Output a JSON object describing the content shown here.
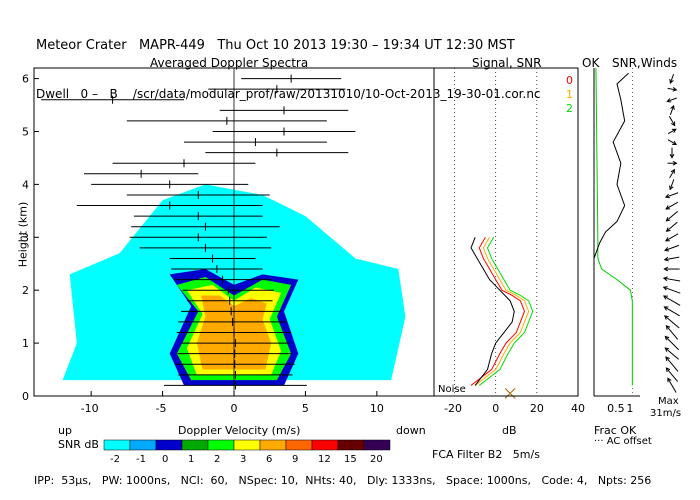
{
  "header": {
    "line1": "Meteor Crater   MAPR-449   Thu Oct 10 2013 19:30 – 19:34 UT 12:30 MST",
    "line2": "Dwell   0 –   B    /scr/data/modular_prof/raw/20131010/10-Oct-2013_19-30-01.cor.nc"
  },
  "footer": {
    "params": "IPP:  53μs,   PW: 1000ns,   NCI:  60,   NSpec: 10,  NHts: 40,   Dly: 1333ns,   Space: 1000ns,   Code: 4,   Npts: 256",
    "fca": "FCA Filter B2   5m/s"
  },
  "colorbar": {
    "title": "SNR dB",
    "labels": [
      "-2",
      "-1",
      "0",
      "1",
      "2",
      "3",
      "6",
      "9",
      "12",
      "15",
      "20"
    ],
    "colors": [
      "#00ffff",
      "#00aaff",
      "#0000cc",
      "#00aa00",
      "#00ff00",
      "#ffff00",
      "#ffaa00",
      "#ff6600",
      "#ff0000",
      "#660000",
      "#330055"
    ]
  },
  "panels": {
    "doppler": {
      "title": "Averaged Doppler Spectra",
      "xlabel": "Doppler Velocity (m/s)",
      "left_word": "up",
      "right_word": "down"
    },
    "snr": {
      "title": "Signal, SNR",
      "xlabel": "dB",
      "noise_label": "Noise",
      "legend": [
        "0",
        "1",
        "2"
      ],
      "legend_colors": [
        "#ff0000",
        "#ffaa00",
        "#00dd00"
      ]
    },
    "ok": {
      "title": "OK",
      "xlabel": "Frac OK",
      "note": "··· AC offset"
    },
    "winds": {
      "title": "SNR,Winds",
      "max_label": "Max",
      "max_value": "31m/s"
    }
  },
  "chart_data": [
    {
      "type": "heatmap",
      "title": "Averaged Doppler Spectra",
      "xlabel": "Doppler Velocity (m/s)",
      "ylabel": "Height (km)",
      "xlim": [
        -14,
        14
      ],
      "ylim": [
        0,
        6.2
      ],
      "xticks": [
        -10,
        -5,
        0,
        5,
        10
      ],
      "yticks": [
        0,
        1,
        2,
        3,
        4,
        5,
        6
      ],
      "contours": [
        {
          "level": "-2",
          "color": "#00ffff",
          "points": [
            [
              -12,
              0.3
            ],
            [
              -11,
              1.0
            ],
            [
              -11.5,
              2.3
            ],
            [
              -8,
              2.7
            ],
            [
              -5,
              3.7
            ],
            [
              -2,
              4.0
            ],
            [
              2,
              3.8
            ],
            [
              5,
              3.4
            ],
            [
              8.5,
              2.6
            ],
            [
              11.5,
              2.4
            ],
            [
              12,
              1.5
            ],
            [
              11,
              0.3
            ]
          ]
        },
        {
          "level": "0",
          "color": "#0000cc",
          "points": [
            [
              -3.5,
              0.2
            ],
            [
              -4.5,
              0.8
            ],
            [
              -3,
              1.7
            ],
            [
              -4.5,
              2.3
            ],
            [
              -2,
              2.4
            ],
            [
              0,
              2.1
            ],
            [
              2,
              2.3
            ],
            [
              4.5,
              2.2
            ],
            [
              3.5,
              1.6
            ],
            [
              4.5,
              0.8
            ],
            [
              3.5,
              0.2
            ]
          ]
        },
        {
          "level": "2",
          "color": "#00ff00",
          "points": [
            [
              -3,
              0.3
            ],
            [
              -4,
              0.8
            ],
            [
              -2.5,
              1.6
            ],
            [
              -4,
              2.1
            ],
            [
              -2,
              2.25
            ],
            [
              0,
              1.9
            ],
            [
              2,
              2.2
            ],
            [
              4,
              2.1
            ],
            [
              3,
              1.5
            ],
            [
              4,
              0.8
            ],
            [
              3,
              0.3
            ]
          ]
        },
        {
          "level": "3",
          "color": "#ffff00",
          "points": [
            [
              -2.6,
              0.4
            ],
            [
              -3.3,
              0.9
            ],
            [
              -2.2,
              1.55
            ],
            [
              -3.3,
              2.0
            ],
            [
              -1.5,
              2.1
            ],
            [
              0,
              1.8
            ],
            [
              1.5,
              2.05
            ],
            [
              3.3,
              1.95
            ],
            [
              2.5,
              1.45
            ],
            [
              3.3,
              0.85
            ],
            [
              2.6,
              0.4
            ]
          ]
        },
        {
          "level": "6",
          "color": "#ffaa00",
          "points": [
            [
              -2.2,
              0.5
            ],
            [
              -2.6,
              1.0
            ],
            [
              -2,
              1.5
            ],
            [
              -2.3,
              1.9
            ],
            [
              -1,
              1.9
            ],
            [
              0,
              1.7
            ],
            [
              1.2,
              1.85
            ],
            [
              2.3,
              1.75
            ],
            [
              2,
              1.45
            ],
            [
              2.6,
              1.0
            ],
            [
              2.2,
              0.5
            ]
          ]
        }
      ],
      "snr_points": [
        {
          "h": 0.2,
          "v": 0.1,
          "w": 5.0
        },
        {
          "h": 0.4,
          "v": 0.1,
          "w": 4.0
        },
        {
          "h": 0.6,
          "v": 0.05,
          "w": 4.2
        },
        {
          "h": 0.8,
          "v": 0.05,
          "w": 4.0
        },
        {
          "h": 1.0,
          "v": 0.1,
          "w": 3.8
        },
        {
          "h": 1.2,
          "v": 0.0,
          "w": 4.0
        },
        {
          "h": 1.4,
          "v": -0.1,
          "w": 3.8
        },
        {
          "h": 1.6,
          "v": -0.2,
          "w": 3.5
        },
        {
          "h": 1.8,
          "v": -0.3,
          "w": 3.0
        },
        {
          "h": 2.0,
          "v": -0.4,
          "w": 3.2
        },
        {
          "h": 2.2,
          "v": -0.8,
          "w": 3.4
        },
        {
          "h": 2.4,
          "v": -1.2,
          "w": 3.2
        },
        {
          "h": 2.6,
          "v": -1.5,
          "w": 3.0
        },
        {
          "h": 2.8,
          "v": -2.0,
          "w": 4.6
        },
        {
          "h": 3.0,
          "v": -2.5,
          "w": 4.8
        },
        {
          "h": 3.2,
          "v": -2.0,
          "w": 5.2
        },
        {
          "h": 3.4,
          "v": -2.5,
          "w": 4.5
        },
        {
          "h": 3.6,
          "v": -4.5,
          "w": 6.5
        },
        {
          "h": 3.8,
          "v": -2.5,
          "w": 5.0
        },
        {
          "h": 4.0,
          "v": -4.5,
          "w": 5.5
        },
        {
          "h": 4.2,
          "v": -6.5,
          "w": 4.0
        },
        {
          "h": 4.4,
          "v": -3.5,
          "w": 5.0
        },
        {
          "h": 4.6,
          "v": 3.0,
          "w": 5.0
        },
        {
          "h": 4.8,
          "v": 1.5,
          "w": 5.0
        },
        {
          "h": 5.0,
          "v": 3.5,
          "w": 5.0
        },
        {
          "h": 5.2,
          "v": -0.5,
          "w": 7.0
        },
        {
          "h": 5.4,
          "v": 3.5,
          "w": 4.5
        },
        {
          "h": 5.6,
          "v": -8.5,
          "w": 5.0
        },
        {
          "h": 5.8,
          "v": 3.0,
          "w": 4.8
        },
        {
          "h": 6.0,
          "v": 4.0,
          "w": 3.5
        }
      ]
    },
    {
      "type": "line",
      "title": "Signal, SNR",
      "xlabel": "dB",
      "ylabel": "Height (km)",
      "xlim": [
        -30,
        40
      ],
      "ylim": [
        0,
        6.2
      ],
      "xticks": [
        -20,
        0,
        20,
        40
      ],
      "series": [
        {
          "name": "0",
          "color": "#ff0000",
          "points": [
            [
              -12,
              0.2
            ],
            [
              -2,
              0.5
            ],
            [
              2,
              0.8
            ],
            [
              5,
              1.0
            ],
            [
              10,
              1.2
            ],
            [
              12,
              1.4
            ],
            [
              14,
              1.6
            ],
            [
              12,
              1.8
            ],
            [
              8,
              1.9
            ],
            [
              3,
              2.0
            ],
            [
              0,
              2.2
            ],
            [
              -3,
              2.4
            ],
            [
              -6,
              2.6
            ],
            [
              -8,
              2.8
            ],
            [
              -5,
              3.0
            ]
          ]
        },
        {
          "name": "1",
          "color": "#ffaa00",
          "points": [
            [
              -10,
              0.2
            ],
            [
              0,
              0.5
            ],
            [
              4,
              0.8
            ],
            [
              7,
              1.0
            ],
            [
              12,
              1.2
            ],
            [
              14,
              1.4
            ],
            [
              16,
              1.6
            ],
            [
              14,
              1.8
            ],
            [
              10,
              1.9
            ],
            [
              5,
              2.0
            ],
            [
              2,
              2.2
            ],
            [
              -1,
              2.4
            ],
            [
              -4,
              2.6
            ],
            [
              -6,
              2.8
            ],
            [
              -3,
              3.0
            ]
          ]
        },
        {
          "name": "2",
          "color": "#00dd00",
          "points": [
            [
              -8,
              0.2
            ],
            [
              2,
              0.5
            ],
            [
              6,
              0.8
            ],
            [
              9,
              1.0
            ],
            [
              14,
              1.2
            ],
            [
              16,
              1.4
            ],
            [
              18,
              1.6
            ],
            [
              16,
              1.8
            ],
            [
              12,
              1.9
            ],
            [
              7,
              2.0
            ],
            [
              4,
              2.2
            ],
            [
              1,
              2.4
            ],
            [
              -2,
              2.6
            ],
            [
              -4,
              2.8
            ],
            [
              -1,
              3.0
            ]
          ]
        },
        {
          "name": "noise",
          "color": "#000000",
          "points": [
            [
              -10,
              0.2
            ],
            [
              -4,
              0.5
            ],
            [
              -2,
              0.8
            ],
            [
              0,
              1.0
            ],
            [
              4,
              1.2
            ],
            [
              8,
              1.4
            ],
            [
              9,
              1.6
            ],
            [
              7,
              1.8
            ],
            [
              2,
              2.0
            ],
            [
              -3,
              2.2
            ],
            [
              -6,
              2.4
            ],
            [
              -9,
              2.6
            ],
            [
              -12,
              2.8
            ],
            [
              -10,
              3.0
            ]
          ]
        }
      ],
      "marker": {
        "x": 7,
        "y": 0.05
      }
    },
    {
      "type": "line",
      "title": "OK",
      "xlabel": "Frac OK",
      "ylabel": "Height (km)",
      "xlim": [
        0,
        1.2
      ],
      "ylim": [
        0,
        6.2
      ],
      "xticks": [
        0.5,
        1
      ],
      "series": [
        {
          "name": "frac-ok",
          "color": "#00cc00",
          "points": [
            [
              1.0,
              0.2
            ],
            [
              1.0,
              1.8
            ],
            [
              0.95,
              2.0
            ],
            [
              0.6,
              2.2
            ],
            [
              0.2,
              2.4
            ],
            [
              0.1,
              2.6
            ],
            [
              0.1,
              3.0
            ],
            [
              0.05,
              6.2
            ]
          ]
        },
        {
          "name": "snr",
          "color": "#000000",
          "points": [
            [
              0.0,
              2.6
            ],
            [
              0.15,
              2.9
            ],
            [
              0.3,
              3.1
            ],
            [
              0.6,
              3.3
            ],
            [
              0.8,
              3.6
            ],
            [
              0.6,
              4.0
            ],
            [
              0.7,
              4.4
            ],
            [
              0.5,
              4.8
            ],
            [
              0.8,
              5.2
            ],
            [
              0.7,
              5.6
            ],
            [
              0.6,
              5.9
            ],
            [
              0.9,
              6.1
            ]
          ]
        }
      ]
    },
    {
      "type": "scatter",
      "title": "SNR,Winds",
      "ylabel": "Height (km)",
      "ylim": [
        0,
        6.2
      ],
      "max_speed": 31,
      "winds": [
        {
          "h": 0.2,
          "dir": 330,
          "spd": 18
        },
        {
          "h": 0.4,
          "dir": 320,
          "spd": 20
        },
        {
          "h": 0.6,
          "dir": 320,
          "spd": 22
        },
        {
          "h": 0.8,
          "dir": 310,
          "spd": 20
        },
        {
          "h": 1.0,
          "dir": 315,
          "spd": 22
        },
        {
          "h": 1.2,
          "dir": 320,
          "spd": 20
        },
        {
          "h": 1.4,
          "dir": 310,
          "spd": 22
        },
        {
          "h": 1.6,
          "dir": 300,
          "spd": 20
        },
        {
          "h": 1.8,
          "dir": 300,
          "spd": 22
        },
        {
          "h": 2.0,
          "dir": 290,
          "spd": 20
        },
        {
          "h": 2.2,
          "dir": 280,
          "spd": 18
        },
        {
          "h": 2.4,
          "dir": 270,
          "spd": 16
        },
        {
          "h": 2.6,
          "dir": 260,
          "spd": 15
        },
        {
          "h": 2.8,
          "dir": 250,
          "spd": 15
        },
        {
          "h": 3.0,
          "dir": 240,
          "spd": 14
        },
        {
          "h": 3.2,
          "dir": 230,
          "spd": 14
        },
        {
          "h": 3.4,
          "dir": 230,
          "spd": 15
        },
        {
          "h": 3.6,
          "dir": 240,
          "spd": 13
        },
        {
          "h": 3.8,
          "dir": 250,
          "spd": 12
        },
        {
          "h": 4.0,
          "dir": 200,
          "spd": 8
        },
        {
          "h": 4.2,
          "dir": 30,
          "spd": 6
        },
        {
          "h": 4.4,
          "dir": 90,
          "spd": 5
        },
        {
          "h": 4.6,
          "dir": 180,
          "spd": 7
        },
        {
          "h": 4.8,
          "dir": 120,
          "spd": 6
        },
        {
          "h": 5.0,
          "dir": 60,
          "spd": 5
        },
        {
          "h": 5.2,
          "dir": 150,
          "spd": 8
        },
        {
          "h": 5.4,
          "dir": 20,
          "spd": 6
        },
        {
          "h": 5.6,
          "dir": 250,
          "spd": 7
        },
        {
          "h": 5.8,
          "dir": 100,
          "spd": 5
        },
        {
          "h": 6.0,
          "dir": 200,
          "spd": 6
        }
      ]
    }
  ]
}
